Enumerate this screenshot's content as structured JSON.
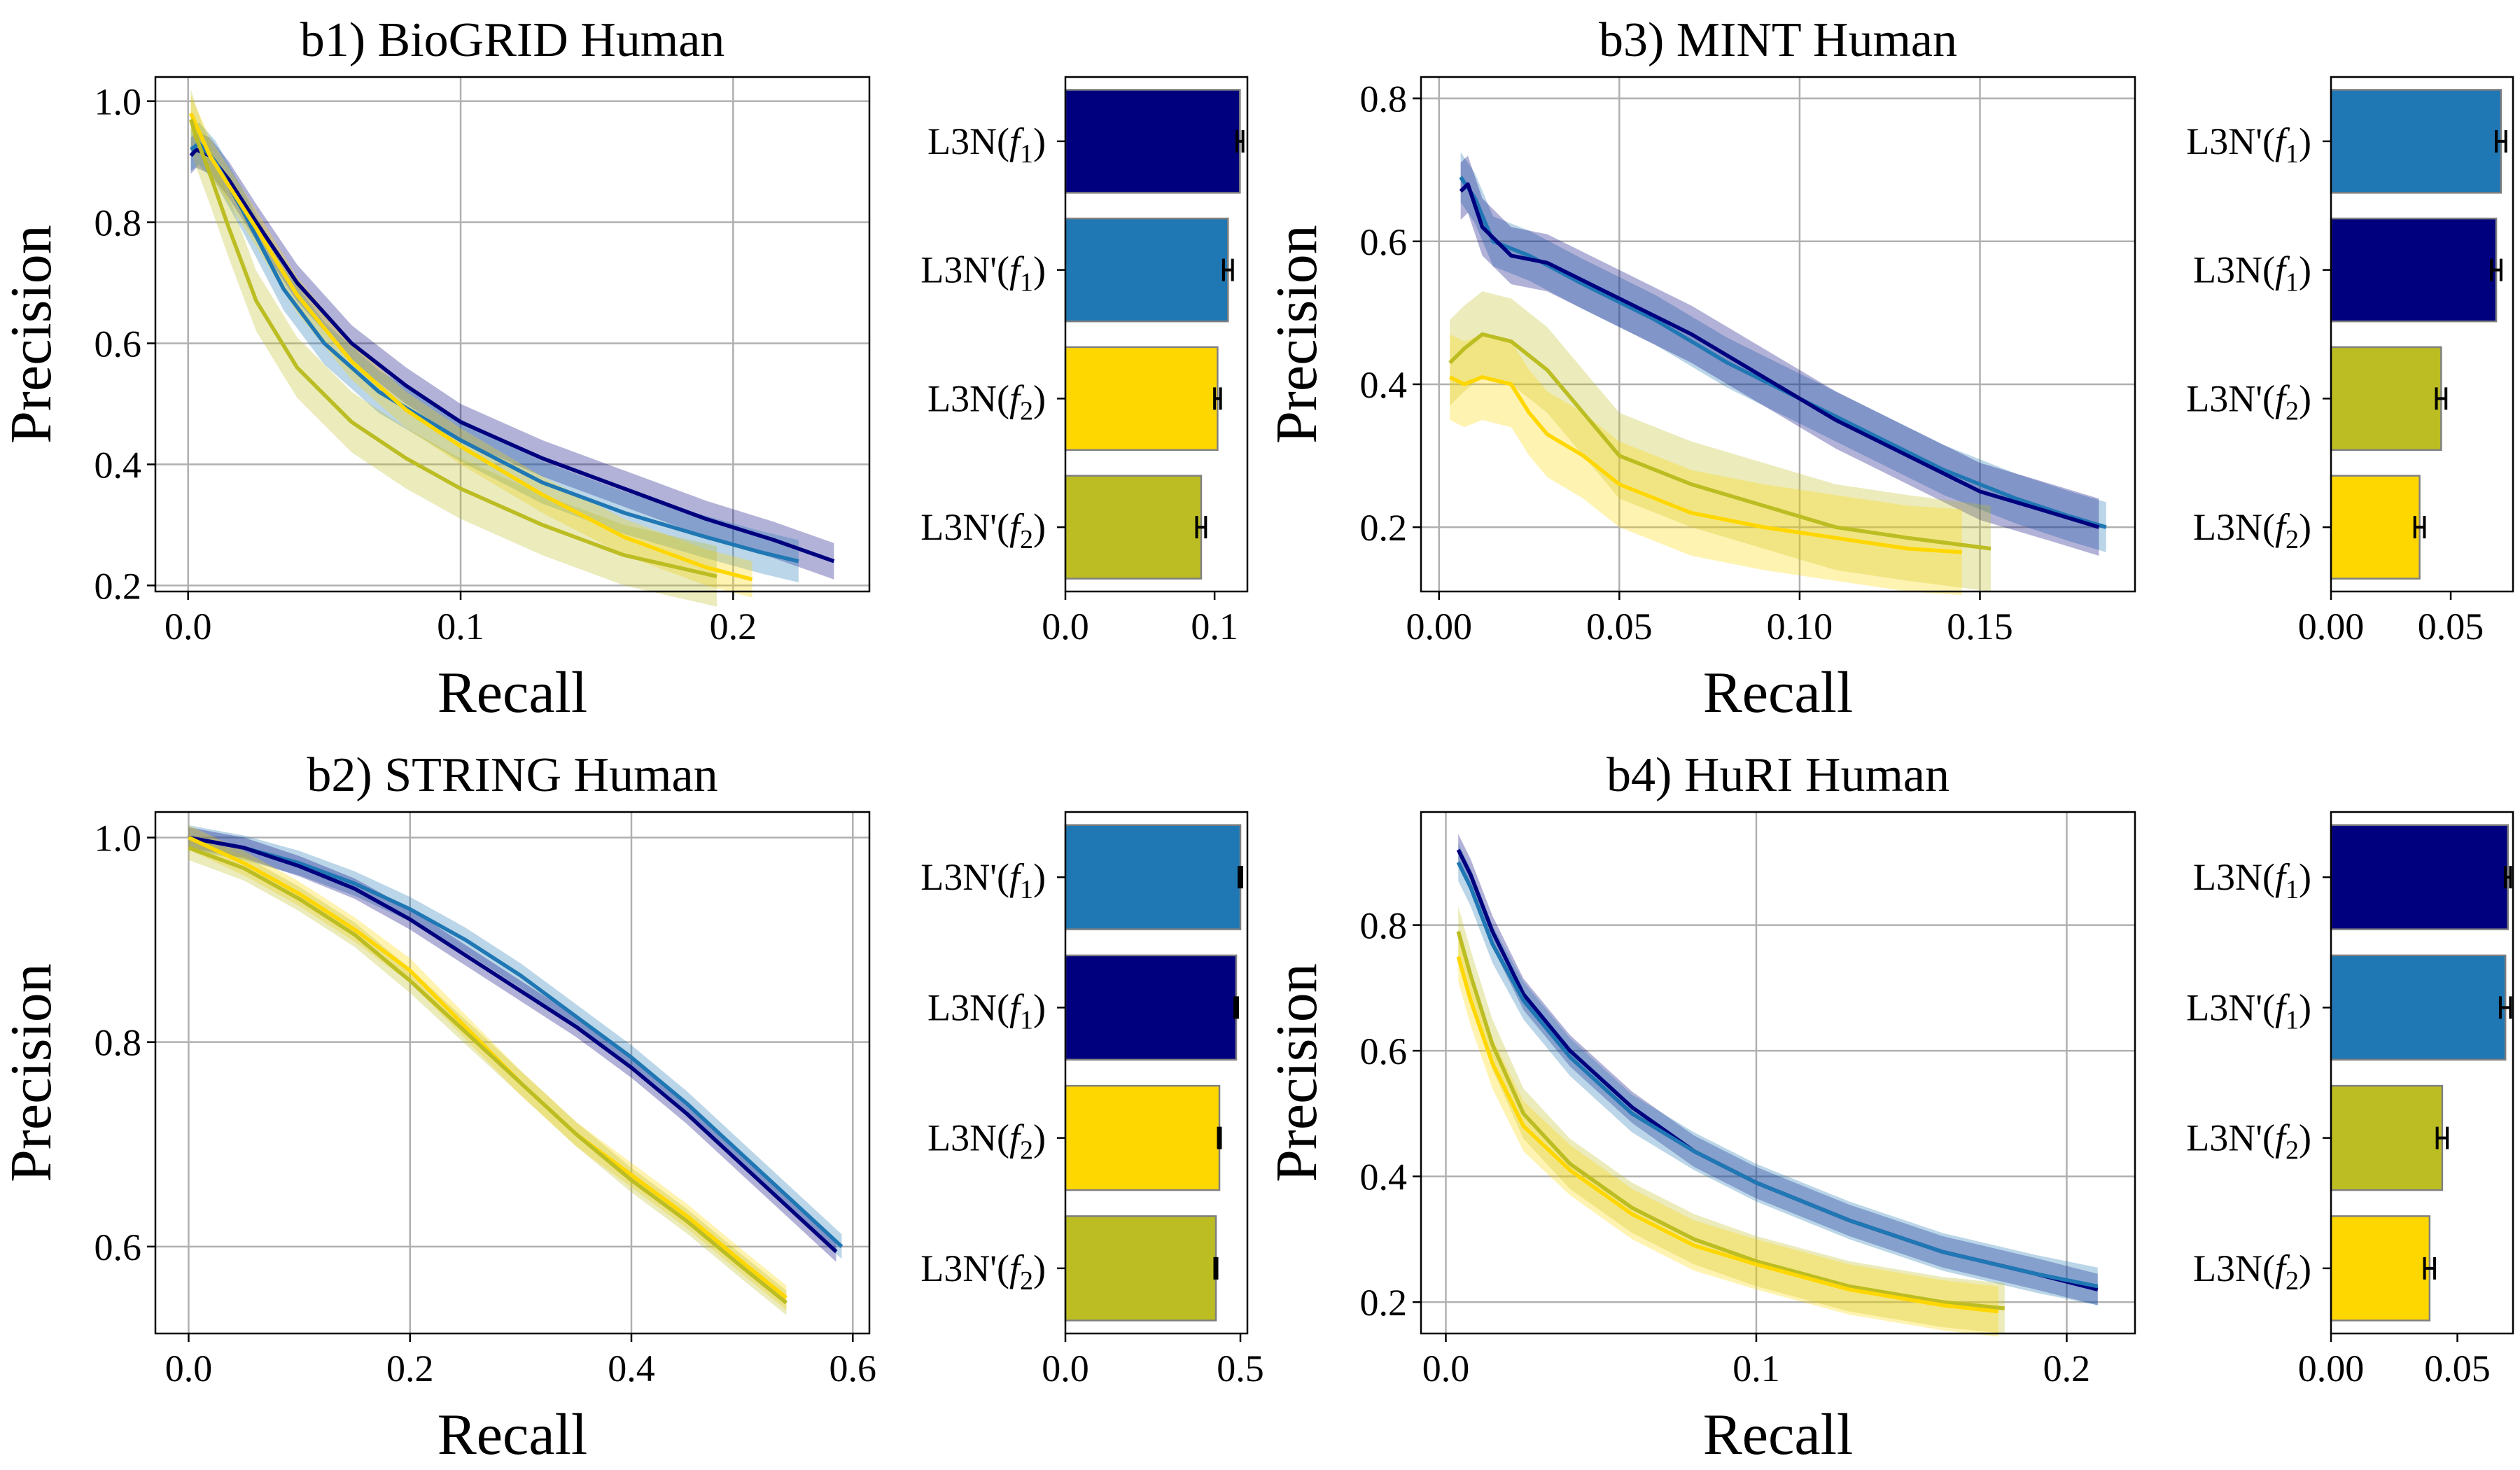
{
  "colors": {
    "L3N_f1": "#00007f",
    "L3Nprime_f1": "#1f77b4",
    "L3N_f2": "#ffd700",
    "L3Nprime_f2": "#bcbd22"
  },
  "chart_data": [
    {
      "type": "line",
      "title": "b1) BioGRID Human",
      "xlabel": "Recall",
      "ylabel": "Precision",
      "xlim": [
        -0.012,
        0.25
      ],
      "ylim": [
        0.19,
        1.04
      ],
      "xticks": [
        0.0,
        0.1,
        0.2
      ],
      "xtick_labels": [
        "0.0",
        "0.1",
        "0.2"
      ],
      "yticks": [
        0.2,
        0.4,
        0.6,
        0.8,
        1.0
      ],
      "ytick_labels": [
        "0.2",
        "0.4",
        "0.6",
        "0.8",
        "1.0"
      ],
      "grid": true,
      "series": [
        {
          "key": "L3N_f1",
          "x": [
            0.001,
            0.003,
            0.008,
            0.015,
            0.025,
            0.04,
            0.06,
            0.08,
            0.1,
            0.13,
            0.16,
            0.19,
            0.215,
            0.237
          ],
          "y": [
            0.91,
            0.92,
            0.91,
            0.87,
            0.8,
            0.7,
            0.6,
            0.53,
            0.47,
            0.41,
            0.36,
            0.31,
            0.275,
            0.24
          ],
          "band": 0.03
        },
        {
          "key": "L3Nprime_f1",
          "x": [
            0.001,
            0.004,
            0.01,
            0.02,
            0.035,
            0.05,
            0.07,
            0.1,
            0.13,
            0.16,
            0.19,
            0.21,
            0.224
          ],
          "y": [
            0.92,
            0.93,
            0.9,
            0.82,
            0.69,
            0.6,
            0.52,
            0.44,
            0.37,
            0.32,
            0.28,
            0.255,
            0.24
          ],
          "band": 0.035
        },
        {
          "key": "L3N_f2",
          "x": [
            0.001,
            0.003,
            0.008,
            0.015,
            0.025,
            0.04,
            0.06,
            0.08,
            0.1,
            0.13,
            0.16,
            0.19,
            0.207
          ],
          "y": [
            0.98,
            0.96,
            0.91,
            0.86,
            0.79,
            0.68,
            0.57,
            0.49,
            0.43,
            0.35,
            0.28,
            0.23,
            0.21
          ],
          "band": 0.03
        },
        {
          "key": "L3Nprime_f2",
          "x": [
            0.001,
            0.003,
            0.008,
            0.015,
            0.025,
            0.04,
            0.06,
            0.08,
            0.1,
            0.13,
            0.16,
            0.194
          ],
          "y": [
            0.97,
            0.94,
            0.88,
            0.79,
            0.67,
            0.56,
            0.47,
            0.41,
            0.36,
            0.3,
            0.25,
            0.215
          ],
          "band": 0.05
        }
      ]
    },
    {
      "type": "bar",
      "orientation": "horizontal",
      "categories": [
        "L3N",
        "L3N'",
        "L3N",
        "L3N'"
      ],
      "subscripts": [
        "1",
        "1",
        "2",
        "2"
      ],
      "keys": [
        "L3N_f1",
        "L3Nprime_f1",
        "L3N_f2",
        "L3Nprime_f2"
      ],
      "values": [
        0.117,
        0.109,
        0.102,
        0.091
      ],
      "errors": [
        0.002,
        0.003,
        0.002,
        0.003
      ],
      "xlim": [
        0,
        0.122
      ],
      "xticks": [
        0.0,
        0.1
      ],
      "xtick_labels": [
        "0.0",
        "0.1"
      ]
    },
    {
      "type": "line",
      "title": "b3) MINT Human",
      "xlabel": "Recall",
      "ylabel": "Precision",
      "xlim": [
        -0.005,
        0.193
      ],
      "ylim": [
        0.11,
        0.83
      ],
      "xticks": [
        0.0,
        0.05,
        0.1,
        0.15
      ],
      "xtick_labels": [
        "0.00",
        "0.05",
        "0.10",
        "0.15"
      ],
      "yticks": [
        0.2,
        0.4,
        0.6,
        0.8
      ],
      "ytick_labels": [
        "0.2",
        "0.4",
        "0.6",
        "0.8"
      ],
      "grid": true,
      "series": [
        {
          "key": "L3Nprime_f1",
          "x": [
            0.006,
            0.01,
            0.015,
            0.025,
            0.04,
            0.06,
            0.08,
            0.1,
            0.12,
            0.14,
            0.16,
            0.175,
            0.185
          ],
          "y": [
            0.69,
            0.66,
            0.6,
            0.58,
            0.54,
            0.49,
            0.43,
            0.38,
            0.33,
            0.28,
            0.24,
            0.215,
            0.2
          ],
          "band": 0.035
        },
        {
          "key": "L3N_f1",
          "x": [
            0.006,
            0.008,
            0.012,
            0.02,
            0.03,
            0.05,
            0.07,
            0.09,
            0.11,
            0.13,
            0.15,
            0.17,
            0.183
          ],
          "y": [
            0.67,
            0.68,
            0.62,
            0.58,
            0.57,
            0.52,
            0.47,
            0.41,
            0.35,
            0.3,
            0.25,
            0.22,
            0.2
          ],
          "band": 0.04
        },
        {
          "key": "L3Nprime_f2",
          "x": [
            0.003,
            0.007,
            0.012,
            0.02,
            0.03,
            0.04,
            0.05,
            0.07,
            0.09,
            0.11,
            0.13,
            0.153
          ],
          "y": [
            0.43,
            0.45,
            0.47,
            0.46,
            0.42,
            0.36,
            0.3,
            0.26,
            0.23,
            0.2,
            0.185,
            0.17
          ],
          "band": 0.06
        },
        {
          "key": "L3N_f2",
          "x": [
            0.003,
            0.007,
            0.012,
            0.02,
            0.025,
            0.03,
            0.04,
            0.05,
            0.07,
            0.09,
            0.11,
            0.13,
            0.145
          ],
          "y": [
            0.41,
            0.4,
            0.41,
            0.4,
            0.36,
            0.33,
            0.3,
            0.26,
            0.22,
            0.2,
            0.185,
            0.17,
            0.165
          ],
          "band": 0.06
        }
      ]
    },
    {
      "type": "bar",
      "orientation": "horizontal",
      "categories": [
        "L3N'",
        "L3N",
        "L3N'",
        "L3N"
      ],
      "subscripts": [
        "1",
        "1",
        "2",
        "2"
      ],
      "keys": [
        "L3Nprime_f1",
        "L3N_f1",
        "L3Nprime_f2",
        "L3N_f2"
      ],
      "values": [
        0.071,
        0.069,
        0.046,
        0.037
      ],
      "errors": [
        0.002,
        0.002,
        0.002,
        0.002
      ],
      "xlim": [
        0,
        0.076
      ],
      "xticks": [
        0.0,
        0.05
      ],
      "xtick_labels": [
        "0.00",
        "0.05"
      ]
    },
    {
      "type": "line",
      "title": "b2) STRING Human",
      "xlabel": "Recall",
      "ylabel": "Precision",
      "xlim": [
        -0.03,
        0.615
      ],
      "ylim": [
        0.515,
        1.025
      ],
      "xticks": [
        0.0,
        0.2,
        0.4,
        0.6
      ],
      "xtick_labels": [
        "0.0",
        "0.2",
        "0.4",
        "0.6"
      ],
      "yticks": [
        0.6,
        0.8,
        1.0
      ],
      "ytick_labels": [
        "0.6",
        "0.8",
        "1.0"
      ],
      "grid": true,
      "series": [
        {
          "key": "L3Nprime_f1",
          "x": [
            0.0,
            0.05,
            0.1,
            0.15,
            0.2,
            0.25,
            0.3,
            0.35,
            0.4,
            0.45,
            0.5,
            0.55,
            0.59
          ],
          "y": [
            1.0,
            0.99,
            0.975,
            0.955,
            0.93,
            0.9,
            0.865,
            0.825,
            0.785,
            0.74,
            0.69,
            0.64,
            0.6
          ],
          "band": 0.012
        },
        {
          "key": "L3N_f1",
          "x": [
            0.0,
            0.05,
            0.1,
            0.15,
            0.2,
            0.25,
            0.3,
            0.35,
            0.4,
            0.45,
            0.5,
            0.55,
            0.585
          ],
          "y": [
            1.0,
            0.99,
            0.972,
            0.95,
            0.92,
            0.885,
            0.85,
            0.815,
            0.775,
            0.73,
            0.68,
            0.63,
            0.595
          ],
          "band": 0.01
        },
        {
          "key": "L3N_f2",
          "x": [
            0.0,
            0.05,
            0.1,
            0.15,
            0.2,
            0.25,
            0.3,
            0.35,
            0.4,
            0.45,
            0.5,
            0.54
          ],
          "y": [
            1.0,
            0.975,
            0.945,
            0.91,
            0.87,
            0.815,
            0.76,
            0.71,
            0.67,
            0.63,
            0.585,
            0.55
          ],
          "band": 0.012
        },
        {
          "key": "L3Nprime_f2",
          "x": [
            0.0,
            0.05,
            0.1,
            0.15,
            0.2,
            0.25,
            0.3,
            0.35,
            0.4,
            0.45,
            0.5,
            0.54
          ],
          "y": [
            0.99,
            0.97,
            0.94,
            0.905,
            0.86,
            0.81,
            0.76,
            0.71,
            0.665,
            0.625,
            0.58,
            0.545
          ],
          "band": 0.012
        }
      ]
    },
    {
      "type": "bar",
      "orientation": "horizontal",
      "categories": [
        "L3N'",
        "L3N",
        "L3N",
        "L3N'"
      ],
      "subscripts": [
        "1",
        "1",
        "2",
        "2"
      ],
      "keys": [
        "L3Nprime_f1",
        "L3N_f1",
        "L3N_f2",
        "L3Nprime_f2"
      ],
      "values": [
        0.5,
        0.488,
        0.44,
        0.43
      ],
      "errors": [
        0.004,
        0.004,
        0.003,
        0.003
      ],
      "xlim": [
        0,
        0.52
      ],
      "xticks": [
        0.0,
        0.5
      ],
      "xtick_labels": [
        "0.0",
        "0.5"
      ]
    },
    {
      "type": "line",
      "title": "b4) HuRI Human",
      "xlabel": "Recall",
      "ylabel": "Precision",
      "xlim": [
        -0.008,
        0.222
      ],
      "ylim": [
        0.15,
        0.98
      ],
      "xticks": [
        0.0,
        0.1,
        0.2
      ],
      "xtick_labels": [
        "0.0",
        "0.1",
        "0.2"
      ],
      "yticks": [
        0.2,
        0.4,
        0.6,
        0.8
      ],
      "ytick_labels": [
        "0.2",
        "0.4",
        "0.6",
        "0.8"
      ],
      "grid": true,
      "series": [
        {
          "key": "L3N_f1",
          "x": [
            0.004,
            0.008,
            0.015,
            0.025,
            0.04,
            0.06,
            0.08,
            0.1,
            0.13,
            0.16,
            0.19,
            0.21
          ],
          "y": [
            0.92,
            0.88,
            0.79,
            0.69,
            0.6,
            0.51,
            0.44,
            0.39,
            0.33,
            0.28,
            0.245,
            0.22
          ],
          "band": 0.025
        },
        {
          "key": "L3Nprime_f1",
          "x": [
            0.004,
            0.008,
            0.015,
            0.025,
            0.04,
            0.06,
            0.08,
            0.1,
            0.13,
            0.16,
            0.19,
            0.21
          ],
          "y": [
            0.9,
            0.86,
            0.77,
            0.68,
            0.59,
            0.5,
            0.44,
            0.39,
            0.33,
            0.28,
            0.245,
            0.225
          ],
          "band": 0.03
        },
        {
          "key": "L3Nprime_f2",
          "x": [
            0.004,
            0.008,
            0.015,
            0.025,
            0.04,
            0.06,
            0.08,
            0.1,
            0.13,
            0.16,
            0.18
          ],
          "y": [
            0.79,
            0.72,
            0.61,
            0.5,
            0.42,
            0.35,
            0.3,
            0.265,
            0.225,
            0.2,
            0.19
          ],
          "band": 0.04
        },
        {
          "key": "L3N_f2",
          "x": [
            0.004,
            0.008,
            0.015,
            0.025,
            0.04,
            0.06,
            0.08,
            0.1,
            0.13,
            0.16,
            0.178
          ],
          "y": [
            0.75,
            0.68,
            0.58,
            0.48,
            0.41,
            0.34,
            0.29,
            0.26,
            0.22,
            0.195,
            0.185
          ],
          "band": 0.04
        }
      ]
    },
    {
      "type": "bar",
      "orientation": "horizontal",
      "categories": [
        "L3N",
        "L3N'",
        "L3N'",
        "L3N"
      ],
      "subscripts": [
        "1",
        "1",
        "2",
        "2"
      ],
      "keys": [
        "L3N_f1",
        "L3Nprime_f1",
        "L3Nprime_f2",
        "L3N_f2"
      ],
      "values": [
        0.07,
        0.069,
        0.044,
        0.039
      ],
      "errors": [
        0.001,
        0.002,
        0.002,
        0.002
      ],
      "xlim": [
        0,
        0.072
      ],
      "xticks": [
        0.0,
        0.05
      ],
      "xtick_labels": [
        "0.00",
        "0.05"
      ]
    }
  ]
}
